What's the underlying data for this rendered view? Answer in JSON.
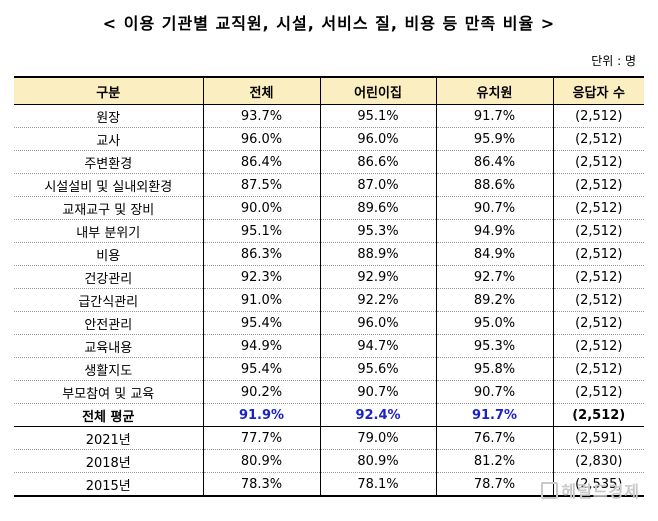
{
  "title": "< 이용 기관별 교직원, 시설, 서비스 질, 비용 등 만족 비율 >",
  "unit": "단위 : 명",
  "table": {
    "headers": [
      "구분",
      "전체",
      "어린이집",
      "유치원",
      "응답자 수"
    ],
    "rows": [
      [
        "원장",
        "93.7%",
        "95.1%",
        "91.7%",
        "(2,512)"
      ],
      [
        "교사",
        "96.0%",
        "96.0%",
        "95.9%",
        "(2,512)"
      ],
      [
        "주변환경",
        "86.4%",
        "86.6%",
        "86.4%",
        "(2,512)"
      ],
      [
        "시설설비 및 실내외환경",
        "87.5%",
        "87.0%",
        "88.6%",
        "(2,512)"
      ],
      [
        "교재교구 및 장비",
        "90.0%",
        "89.6%",
        "90.7%",
        "(2,512)"
      ],
      [
        "내부 분위기",
        "95.1%",
        "95.3%",
        "94.9%",
        "(2,512)"
      ],
      [
        "비용",
        "86.3%",
        "88.9%",
        "84.9%",
        "(2,512)"
      ],
      [
        "건강관리",
        "92.3%",
        "92.9%",
        "92.7%",
        "(2,512)"
      ],
      [
        "급간식관리",
        "91.0%",
        "92.2%",
        "89.2%",
        "(2,512)"
      ],
      [
        "안전관리",
        "95.4%",
        "96.0%",
        "95.0%",
        "(2,512)"
      ],
      [
        "교육내용",
        "94.9%",
        "94.7%",
        "95.3%",
        "(2,512)"
      ],
      [
        "생활지도",
        "95.4%",
        "95.6%",
        "95.8%",
        "(2,512)"
      ],
      [
        "부모참여 및 교육",
        "90.2%",
        "90.7%",
        "90.7%",
        "(2,512)"
      ]
    ],
    "average": [
      "전체 평균",
      "91.9%",
      "92.4%",
      "91.7%",
      "(2,512)"
    ],
    "history": [
      [
        "2021년",
        "77.7%",
        "79.0%",
        "76.7%",
        "(2,591)"
      ],
      [
        "2018년",
        "80.9%",
        "80.9%",
        "81.2%",
        "(2,830)"
      ],
      [
        "2015년",
        "78.3%",
        "78.1%",
        "78.7%",
        "(2,535)"
      ]
    ],
    "highlight_color": "#1b22c8",
    "header_bg": "#fbeec1"
  },
  "watermark": "헤럴드경제"
}
